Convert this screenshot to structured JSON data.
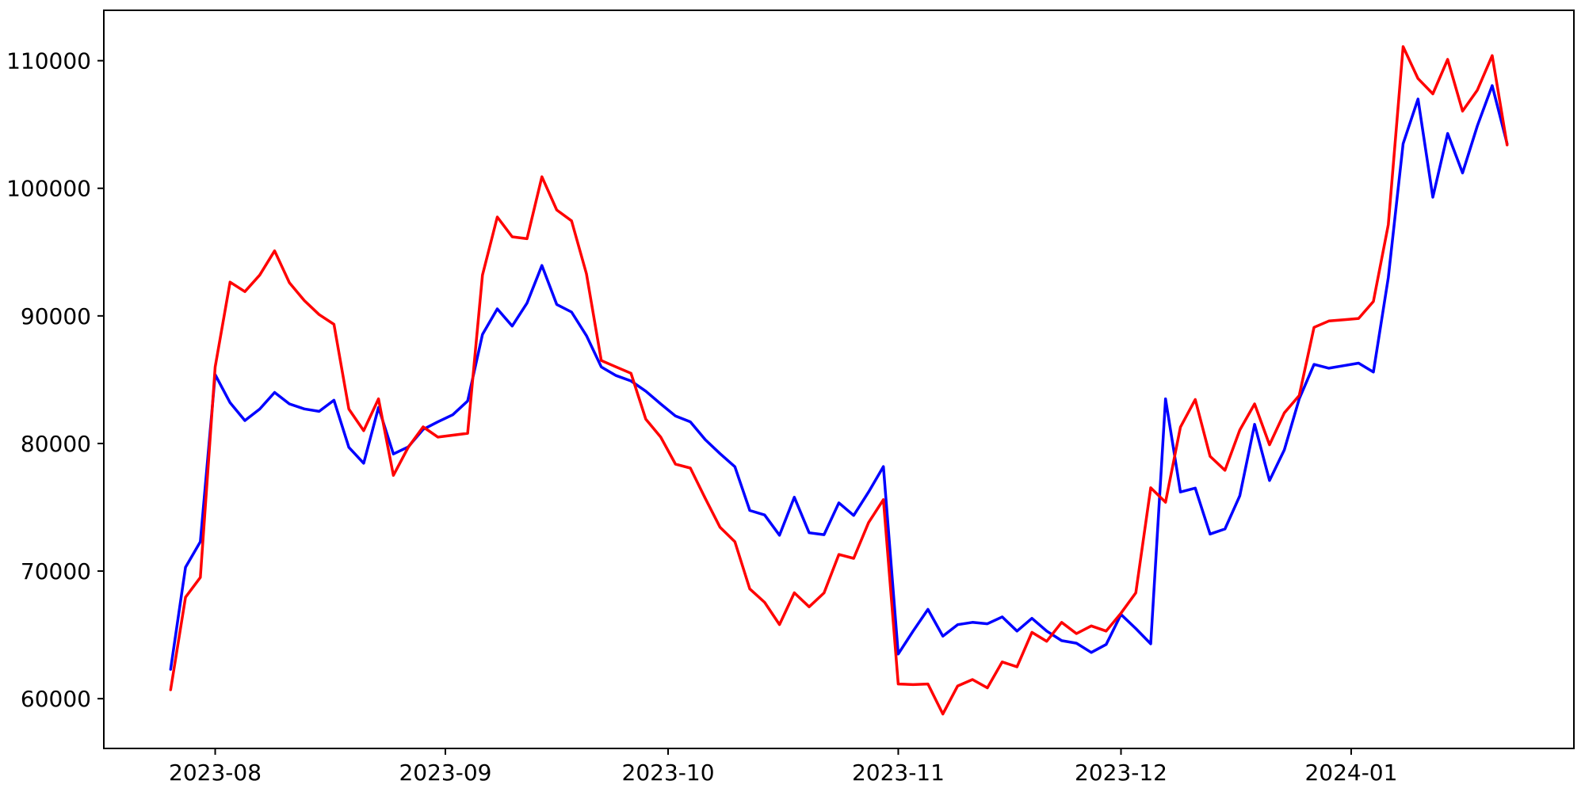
{
  "chart_data": {
    "type": "line",
    "title": "",
    "xlabel": "",
    "ylabel": "",
    "grid": false,
    "legend": null,
    "background_color": "#ffffff",
    "axis_color": "#000000",
    "x_tick_labels": [
      {
        "label": "2023-08",
        "date": "2023-08-01"
      },
      {
        "label": "2023-09",
        "date": "2023-09-01"
      },
      {
        "label": "2023-10",
        "date": "2023-10-01"
      },
      {
        "label": "2023-11",
        "date": "2023-11-01"
      },
      {
        "label": "2023-12",
        "date": "2023-12-01"
      },
      {
        "label": "2024-01",
        "date": "2024-01-01"
      }
    ],
    "y_tick_labels": [
      {
        "label": "60000",
        "value": 60000
      },
      {
        "label": "70000",
        "value": 70000
      },
      {
        "label": "80000",
        "value": 80000
      },
      {
        "label": "90000",
        "value": 90000
      },
      {
        "label": "100000",
        "value": 100000
      },
      {
        "label": "110000",
        "value": 110000
      }
    ],
    "x_range": {
      "start": "2023-07-17",
      "end": "2024-01-31"
    },
    "ylim": [
      56100,
      113950
    ],
    "x": [
      "2023-07-26",
      "2023-07-28",
      "2023-07-30",
      "2023-08-01",
      "2023-08-03",
      "2023-08-05",
      "2023-08-07",
      "2023-08-09",
      "2023-08-11",
      "2023-08-13",
      "2023-08-15",
      "2023-08-17",
      "2023-08-19",
      "2023-08-21",
      "2023-08-23",
      "2023-08-25",
      "2023-08-27",
      "2023-08-29",
      "2023-08-31",
      "2023-09-02",
      "2023-09-04",
      "2023-09-06",
      "2023-09-08",
      "2023-09-10",
      "2023-09-12",
      "2023-09-14",
      "2023-09-16",
      "2023-09-18",
      "2023-09-20",
      "2023-09-22",
      "2023-09-24",
      "2023-09-26",
      "2023-09-28",
      "2023-09-30",
      "2023-10-02",
      "2023-10-04",
      "2023-10-06",
      "2023-10-08",
      "2023-10-10",
      "2023-10-12",
      "2023-10-14",
      "2023-10-16",
      "2023-10-18",
      "2023-10-20",
      "2023-10-22",
      "2023-10-24",
      "2023-10-26",
      "2023-10-28",
      "2023-10-30",
      "2023-11-01",
      "2023-11-03",
      "2023-11-05",
      "2023-11-07",
      "2023-11-09",
      "2023-11-11",
      "2023-11-13",
      "2023-11-15",
      "2023-11-17",
      "2023-11-19",
      "2023-11-21",
      "2023-11-23",
      "2023-11-25",
      "2023-11-27",
      "2023-11-29",
      "2023-12-01",
      "2023-12-03",
      "2023-12-05",
      "2023-12-07",
      "2023-12-09",
      "2023-12-11",
      "2023-12-13",
      "2023-12-15",
      "2023-12-17",
      "2023-12-19",
      "2023-12-21",
      "2023-12-23",
      "2023-12-25",
      "2023-12-27",
      "2023-12-29",
      "2023-12-31",
      "2024-01-02",
      "2024-01-04",
      "2024-01-06",
      "2024-01-08",
      "2024-01-10",
      "2024-01-12",
      "2024-01-14",
      "2024-01-16",
      "2024-01-18",
      "2024-01-20",
      "2024-01-22"
    ],
    "series": [
      {
        "name": "blue-series",
        "color": "#0000ff",
        "values": [
          62300,
          70300,
          72300,
          85400,
          83200,
          81800,
          82700,
          84000,
          83100,
          82710,
          82520,
          83390,
          79700,
          78450,
          82830,
          79180,
          79730,
          81100,
          81700,
          82250,
          83330,
          88550,
          90550,
          89200,
          91000,
          93950,
          90900,
          90300,
          88450,
          86000,
          85320,
          84900,
          84100,
          83100,
          82150,
          81700,
          80300,
          79200,
          78180,
          74750,
          74400,
          72810,
          75790,
          73000,
          72850,
          75350,
          74360,
          76200,
          78190,
          63500,
          65300,
          67000,
          64900,
          65800,
          65980,
          65870,
          66410,
          65300,
          66300,
          65300,
          64550,
          64350,
          63620,
          64250,
          66600,
          65500,
          64300,
          83500,
          76200,
          76500,
          72900,
          73300,
          75900,
          81500,
          77100,
          79500,
          83500,
          86200,
          85900,
          86100,
          86300,
          85600,
          93000,
          103500,
          107000,
          99300,
          104300,
          101200,
          104900,
          108050,
          103500
        ]
      },
      {
        "name": "red-series",
        "color": "#ff0000",
        "values": [
          60700,
          67950,
          69500,
          86000,
          92650,
          91900,
          93200,
          95100,
          92600,
          91200,
          90100,
          89340,
          82700,
          81000,
          83500,
          77500,
          79700,
          81300,
          80500,
          80650,
          80800,
          93200,
          97750,
          96200,
          96050,
          100900,
          98300,
          97450,
          93300,
          86500,
          86000,
          85500,
          81900,
          80500,
          78380,
          78070,
          75700,
          73430,
          72300,
          68600,
          67550,
          65810,
          68300,
          67200,
          68290,
          71300,
          71000,
          73800,
          75600,
          61150,
          61100,
          61150,
          58800,
          61000,
          61500,
          60850,
          62880,
          62500,
          65200,
          64500,
          65980,
          65100,
          65700,
          65300,
          66700,
          68300,
          76530,
          75400,
          81280,
          83450,
          79000,
          77900,
          81050,
          83100,
          79900,
          82400,
          83760,
          89100,
          89600,
          89700,
          89800,
          91130,
          97150,
          111100,
          108600,
          107400,
          110100,
          106050,
          107700,
          110400,
          103400
        ]
      }
    ]
  }
}
